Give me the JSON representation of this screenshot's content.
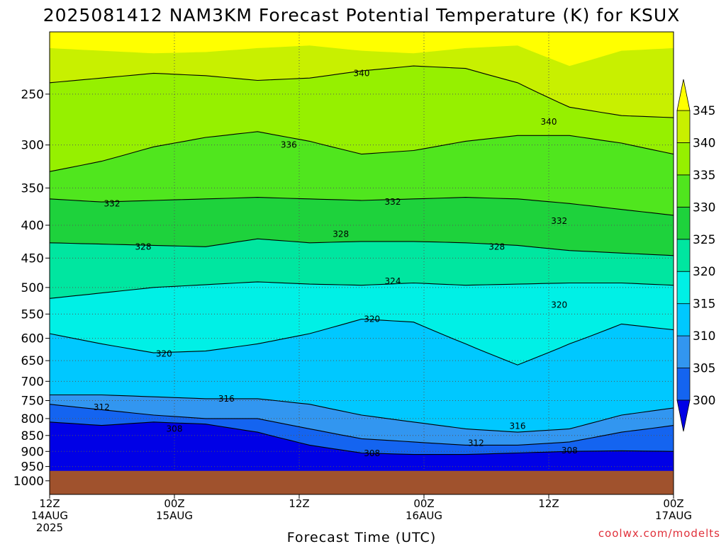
{
  "chart_data": {
    "type": "contour",
    "title": "2025081412 NAM3KM Forecast Potential Temperature (K) for KSUX",
    "xlabel": "Forecast Time (UTC)",
    "ylabel": "",
    "x_ticks": [
      {
        "hour": 0,
        "line1": "12Z",
        "line2": "14AUG",
        "line3": "2025"
      },
      {
        "hour": 12,
        "line1": "00Z",
        "line2": "15AUG",
        "line3": ""
      },
      {
        "hour": 24,
        "line1": "12Z",
        "line2": "",
        "line3": ""
      },
      {
        "hour": 36,
        "line1": "00Z",
        "line2": "16AUG",
        "line3": ""
      },
      {
        "hour": 48,
        "line1": "12Z",
        "line2": "",
        "line3": ""
      },
      {
        "hour": 60,
        "line1": "00Z",
        "line2": "17AUG",
        "line3": ""
      }
    ],
    "xlim": [
      0,
      60
    ],
    "y_ticks": [
      250,
      300,
      350,
      400,
      450,
      500,
      550,
      600,
      650,
      700,
      750,
      800,
      850,
      900,
      950,
      1000
    ],
    "ylim": [
      1050,
      200
    ],
    "y_scale": "log",
    "colorbar": {
      "levels": [
        300,
        305,
        310,
        315,
        320,
        325,
        330,
        335,
        340,
        345
      ],
      "colors": [
        "#0000e6",
        "#1464f0",
        "#3296f0",
        "#00c8ff",
        "#00f0e6",
        "#00e6a0",
        "#1ed23c",
        "#50e61e",
        "#96f000",
        "#c8f000",
        "#ffff00"
      ],
      "low_color": "#0000e6",
      "high_color": "#ffff00"
    },
    "ground_color": "#a0522d",
    "contour_lines": [
      {
        "label": "340",
        "pressure": [
          240,
          236,
          232,
          234,
          238,
          236,
          230,
          226,
          228,
          240,
          262,
          270,
          272
        ],
        "label_at": [
          [
            30,
            232
          ],
          [
            48,
            276
          ]
        ]
      },
      {
        "label": "336",
        "pressure": [
          330,
          318,
          302,
          292,
          286,
          296,
          310,
          306,
          296,
          290,
          290,
          298,
          310
        ],
        "label_at": [
          [
            23,
            300
          ]
        ]
      },
      {
        "label": "332",
        "pressure": [
          364,
          368,
          366,
          364,
          362,
          364,
          366,
          364,
          362,
          364,
          370,
          378,
          386
        ],
        "label_at": [
          [
            6,
            370
          ],
          [
            33,
            368
          ],
          [
            49,
            394
          ]
        ]
      },
      {
        "label": "328",
        "pressure": [
          426,
          428,
          430,
          432,
          420,
          426,
          424,
          424,
          426,
          430,
          438,
          442,
          446
        ],
        "label_at": [
          [
            9,
            432
          ],
          [
            28,
            413
          ],
          [
            43,
            432
          ]
        ]
      },
      {
        "label": "324",
        "pressure": [
          520,
          510,
          500,
          495,
          490,
          494,
          496,
          492,
          496,
          494,
          492,
          492,
          496
        ],
        "label_at": [
          [
            33,
            489
          ]
        ]
      },
      {
        "label": "320",
        "pressure": [
          590,
          612,
          632,
          628,
          612,
          590,
          560,
          566,
          612,
          660,
          612,
          570,
          582
        ],
        "label_at": [
          [
            11,
            634
          ],
          [
            31,
            560
          ],
          [
            49,
            532
          ]
        ]
      },
      {
        "label": "316",
        "pressure": [
          735,
          735,
          740,
          745,
          745,
          760,
          790,
          810,
          830,
          840,
          830,
          790,
          770
        ],
        "label_at": [
          [
            17,
            745
          ],
          [
            45,
            822
          ]
        ]
      },
      {
        "label": "312",
        "pressure": [
          760,
          775,
          790,
          800,
          800,
          830,
          860,
          870,
          880,
          880,
          870,
          840,
          820
        ],
        "label_at": [
          [
            5,
            768
          ],
          [
            41,
            873
          ]
        ]
      },
      {
        "label": "308",
        "pressure": [
          810,
          820,
          810,
          816,
          840,
          880,
          905,
          910,
          910,
          905,
          900,
          898,
          900
        ],
        "label_at": [
          [
            12,
            830
          ],
          [
            31,
            906
          ],
          [
            50,
            897
          ]
        ]
      }
    ],
    "contour_x": [
      0,
      5,
      10,
      15,
      20,
      25,
      30,
      35,
      40,
      45,
      50,
      55,
      60
    ]
  },
  "credit": "coolwx.com/modelts"
}
